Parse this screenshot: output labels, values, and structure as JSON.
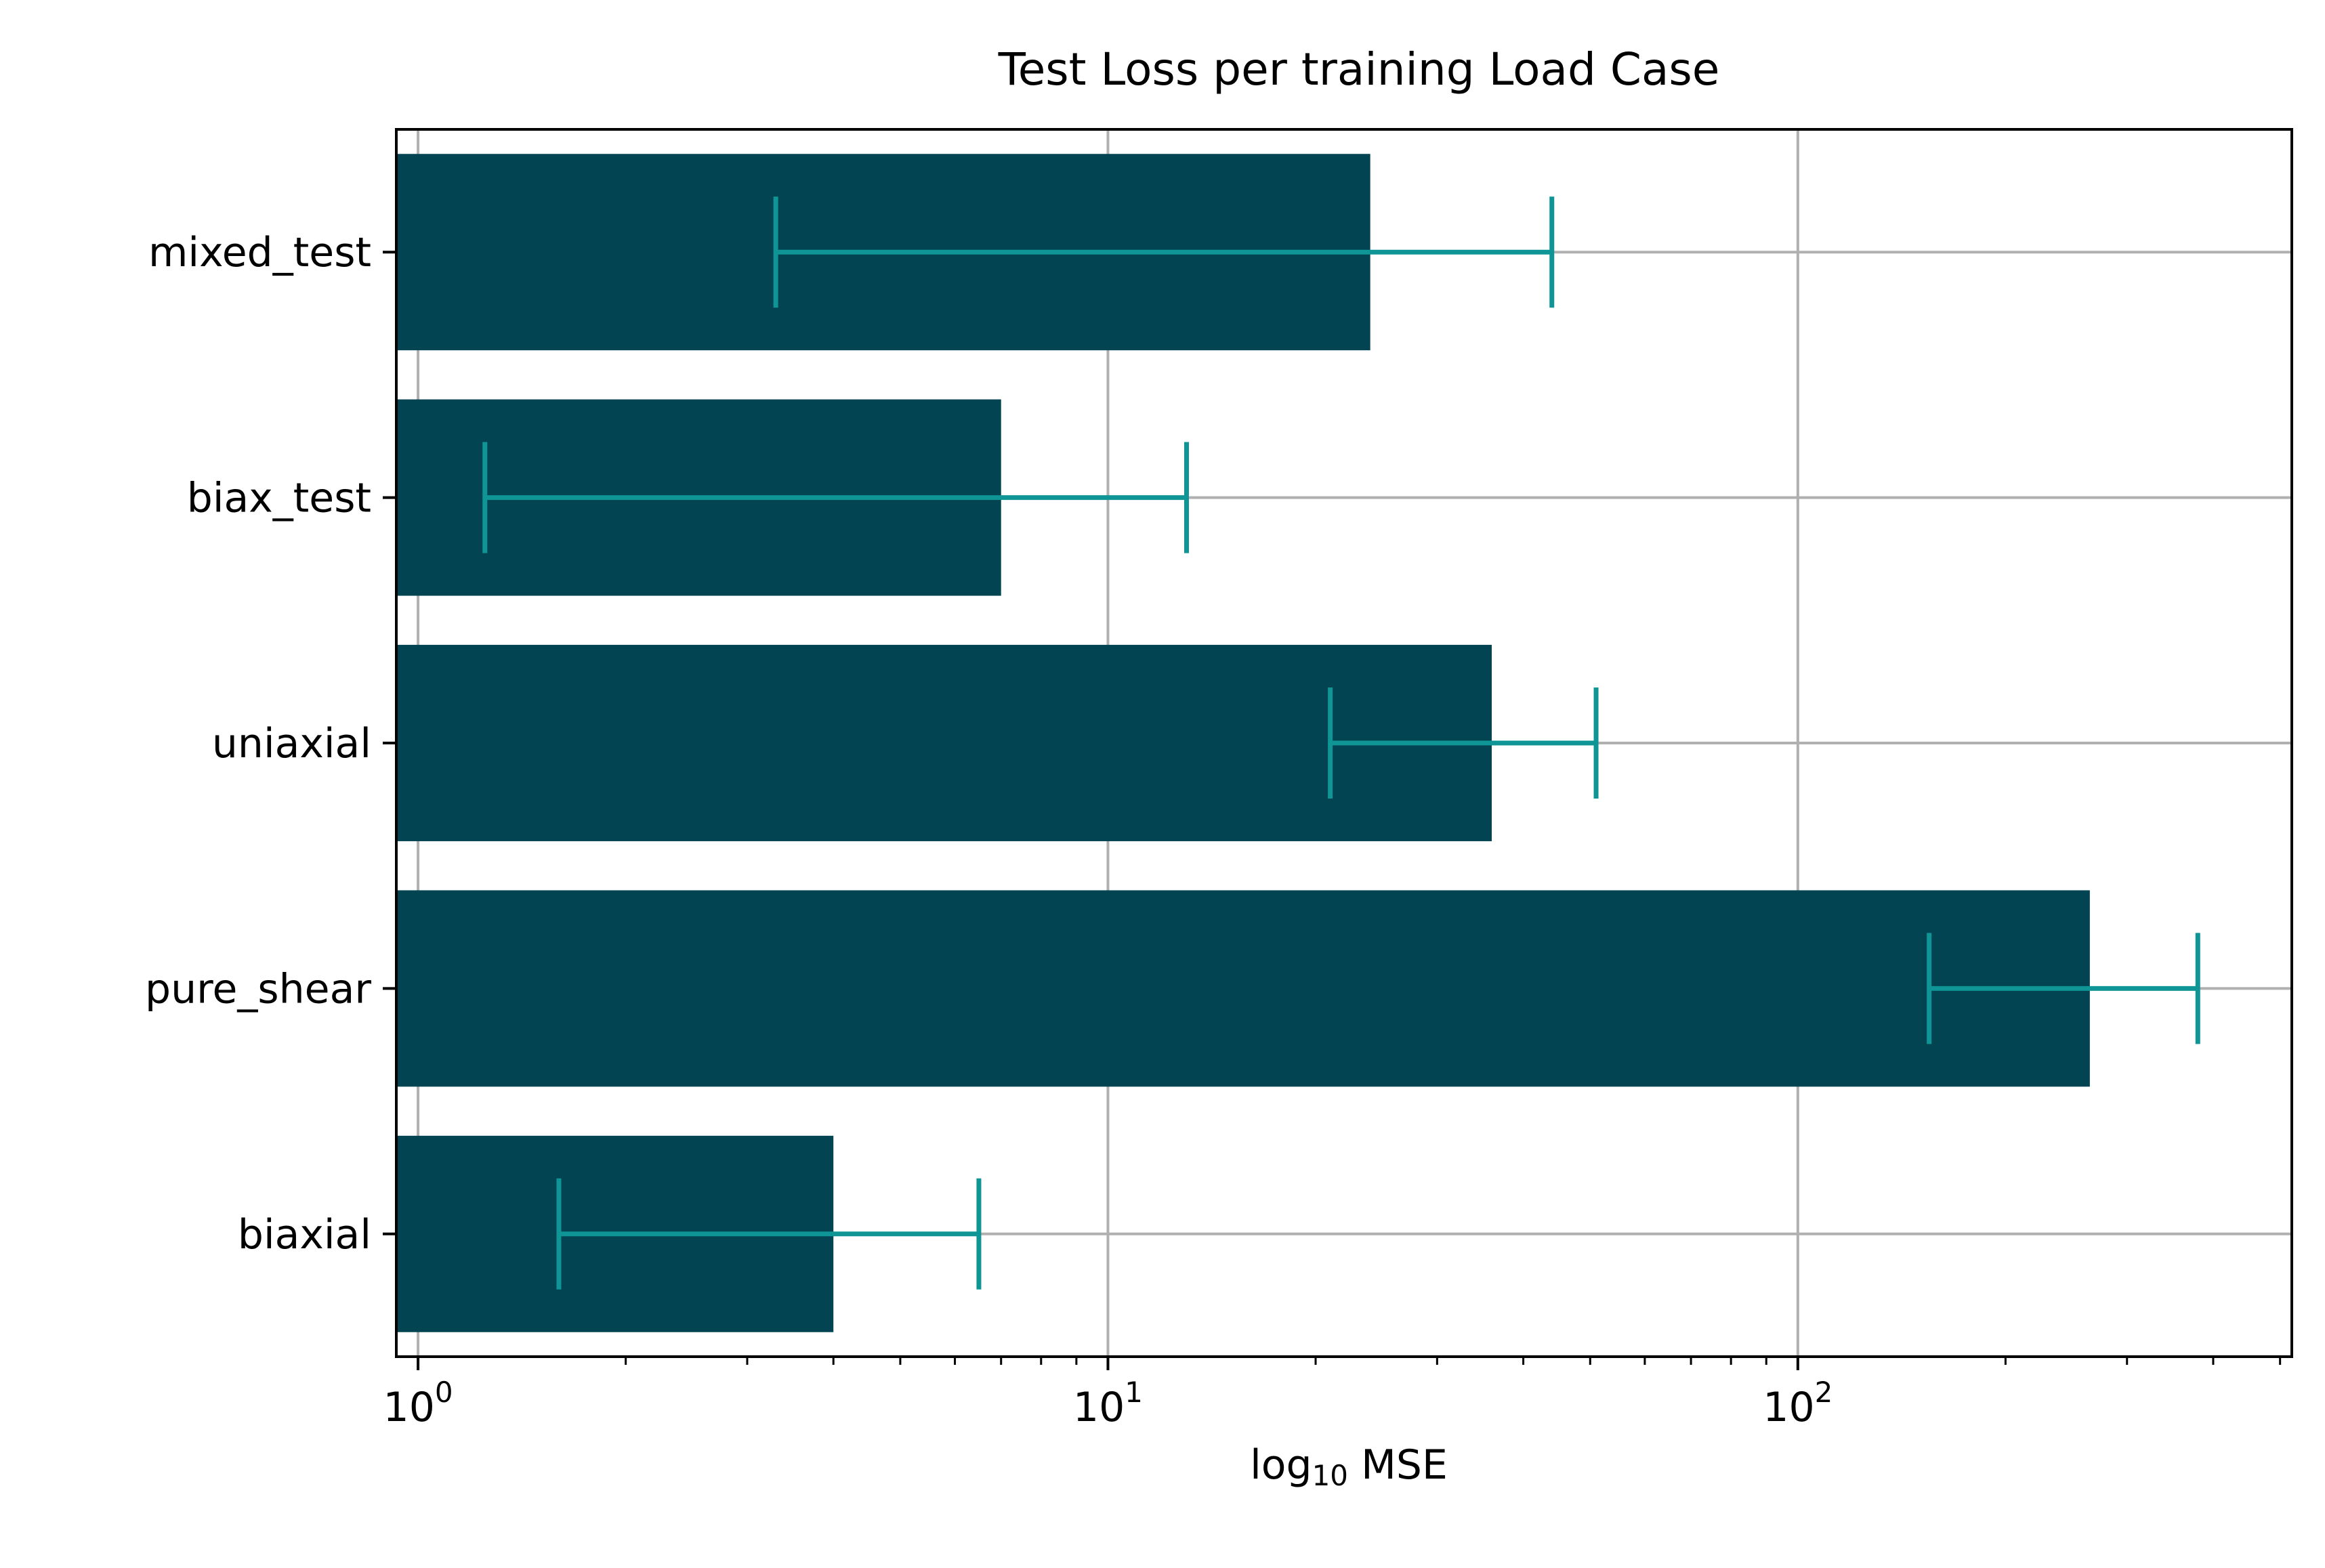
{
  "chart_data": {
    "type": "bar",
    "orientation": "horizontal",
    "title": "Test Loss per training Load Case",
    "xlabel_base": "log",
    "xlabel_sub": "10",
    "xlabel_rest": " MSE",
    "ylabel": "",
    "xscale": "log",
    "xlim": [
      0.93,
      520
    ],
    "grid": true,
    "categories": [
      "biaxial",
      "pure_shear",
      "uniaxial",
      "biax_test",
      "mixed_test"
    ],
    "values": [
      4.0,
      265.0,
      36.0,
      7.0,
      24.0
    ],
    "error_low": [
      1.6,
      155.0,
      21.0,
      1.25,
      3.3
    ],
    "error_high": [
      6.5,
      380.0,
      51.0,
      13.0,
      44.0
    ],
    "xticks": [
      {
        "base": "10",
        "exp": "0",
        "value": 1
      },
      {
        "base": "10",
        "exp": "1",
        "value": 10
      },
      {
        "base": "10",
        "exp": "2",
        "value": 100
      }
    ],
    "colors": {
      "bar": "#024452",
      "error": "#0f9595",
      "grid": "#b0b0b0"
    }
  }
}
